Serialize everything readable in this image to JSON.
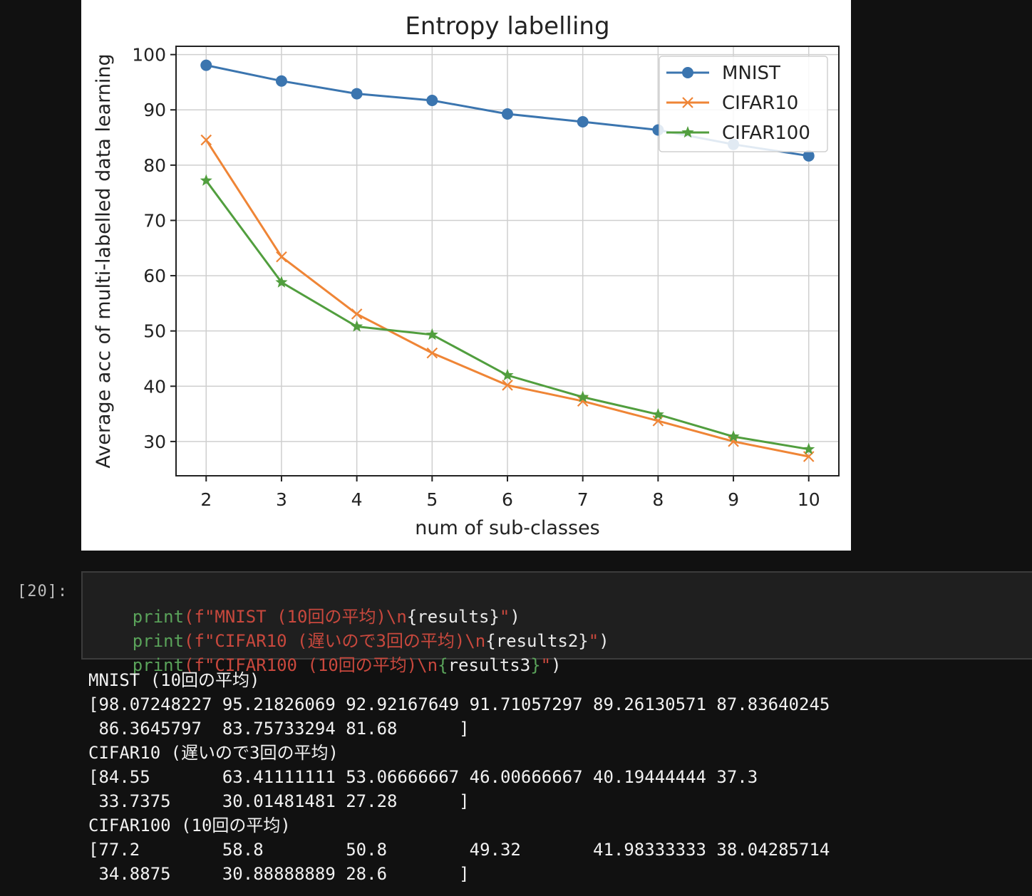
{
  "chart_data": {
    "type": "line",
    "title": "Entropy labelling",
    "xlabel": "num of sub-classes",
    "ylabel": "Average acc of multi-labelled data learning",
    "x": [
      2,
      3,
      4,
      5,
      6,
      7,
      8,
      9,
      10
    ],
    "xlim": [
      1.6,
      10.4
    ],
    "ylim": [
      23.8,
      101.5
    ],
    "yticks": [
      30,
      40,
      50,
      60,
      70,
      80,
      90,
      100
    ],
    "grid": true,
    "legend_position": "top-right",
    "series": [
      {
        "name": "MNIST",
        "marker": "circle",
        "color": "#3b75af",
        "values": [
          98.07,
          95.22,
          92.92,
          91.71,
          89.26,
          87.84,
          86.36,
          83.76,
          81.68
        ]
      },
      {
        "name": "CIFAR10",
        "marker": "x",
        "color": "#ef8536",
        "values": [
          84.55,
          63.41,
          53.07,
          46.01,
          40.19,
          37.3,
          33.74,
          30.01,
          27.28
        ]
      },
      {
        "name": "CIFAR100",
        "marker": "star",
        "color": "#519e3e",
        "values": [
          77.2,
          58.8,
          50.8,
          49.32,
          41.98,
          38.04,
          34.89,
          30.89,
          28.6
        ]
      }
    ]
  },
  "cell": {
    "prompt": "[20]:",
    "code_lines": [
      {
        "fn": "print",
        "open": "(",
        "str_a": "f\"MNIST (10回の平均)\\n",
        "brace_open": "{",
        "var": "results",
        "brace_close": "}",
        "str_b": "\"",
        "close": ")"
      },
      {
        "fn": "print",
        "open": "(",
        "str_a": "f\"CIFAR10 (遅いので3回の平均)\\n",
        "brace_open": "{",
        "var": "results2",
        "brace_close": "}",
        "str_b": "\"",
        "close": ")"
      },
      {
        "fn": "print",
        "open": "(",
        "str_a": "f\"CIFAR100 (10回の平均)\\n",
        "brace_open": "{",
        "var": "results3",
        "brace_close": "}",
        "str_b": "\"",
        "close": ")"
      }
    ],
    "output_lines": [
      "MNIST (10回の平均)",
      "[98.07248227 95.21826069 92.92167649 91.71057297 89.26130571 87.83640245",
      " 86.3645797  83.75733294 81.68      ]",
      "CIFAR10 (遅いので3回の平均)",
      "[84.55       63.41111111 53.06666667 46.00666667 40.19444444 37.3",
      " 33.7375     30.01481481 27.28      ]",
      "CIFAR100 (10回の平均)",
      "[77.2        58.8        50.8        49.32       41.98333333 38.04285714",
      " 34.8875     30.88888889 28.6       ]"
    ]
  }
}
